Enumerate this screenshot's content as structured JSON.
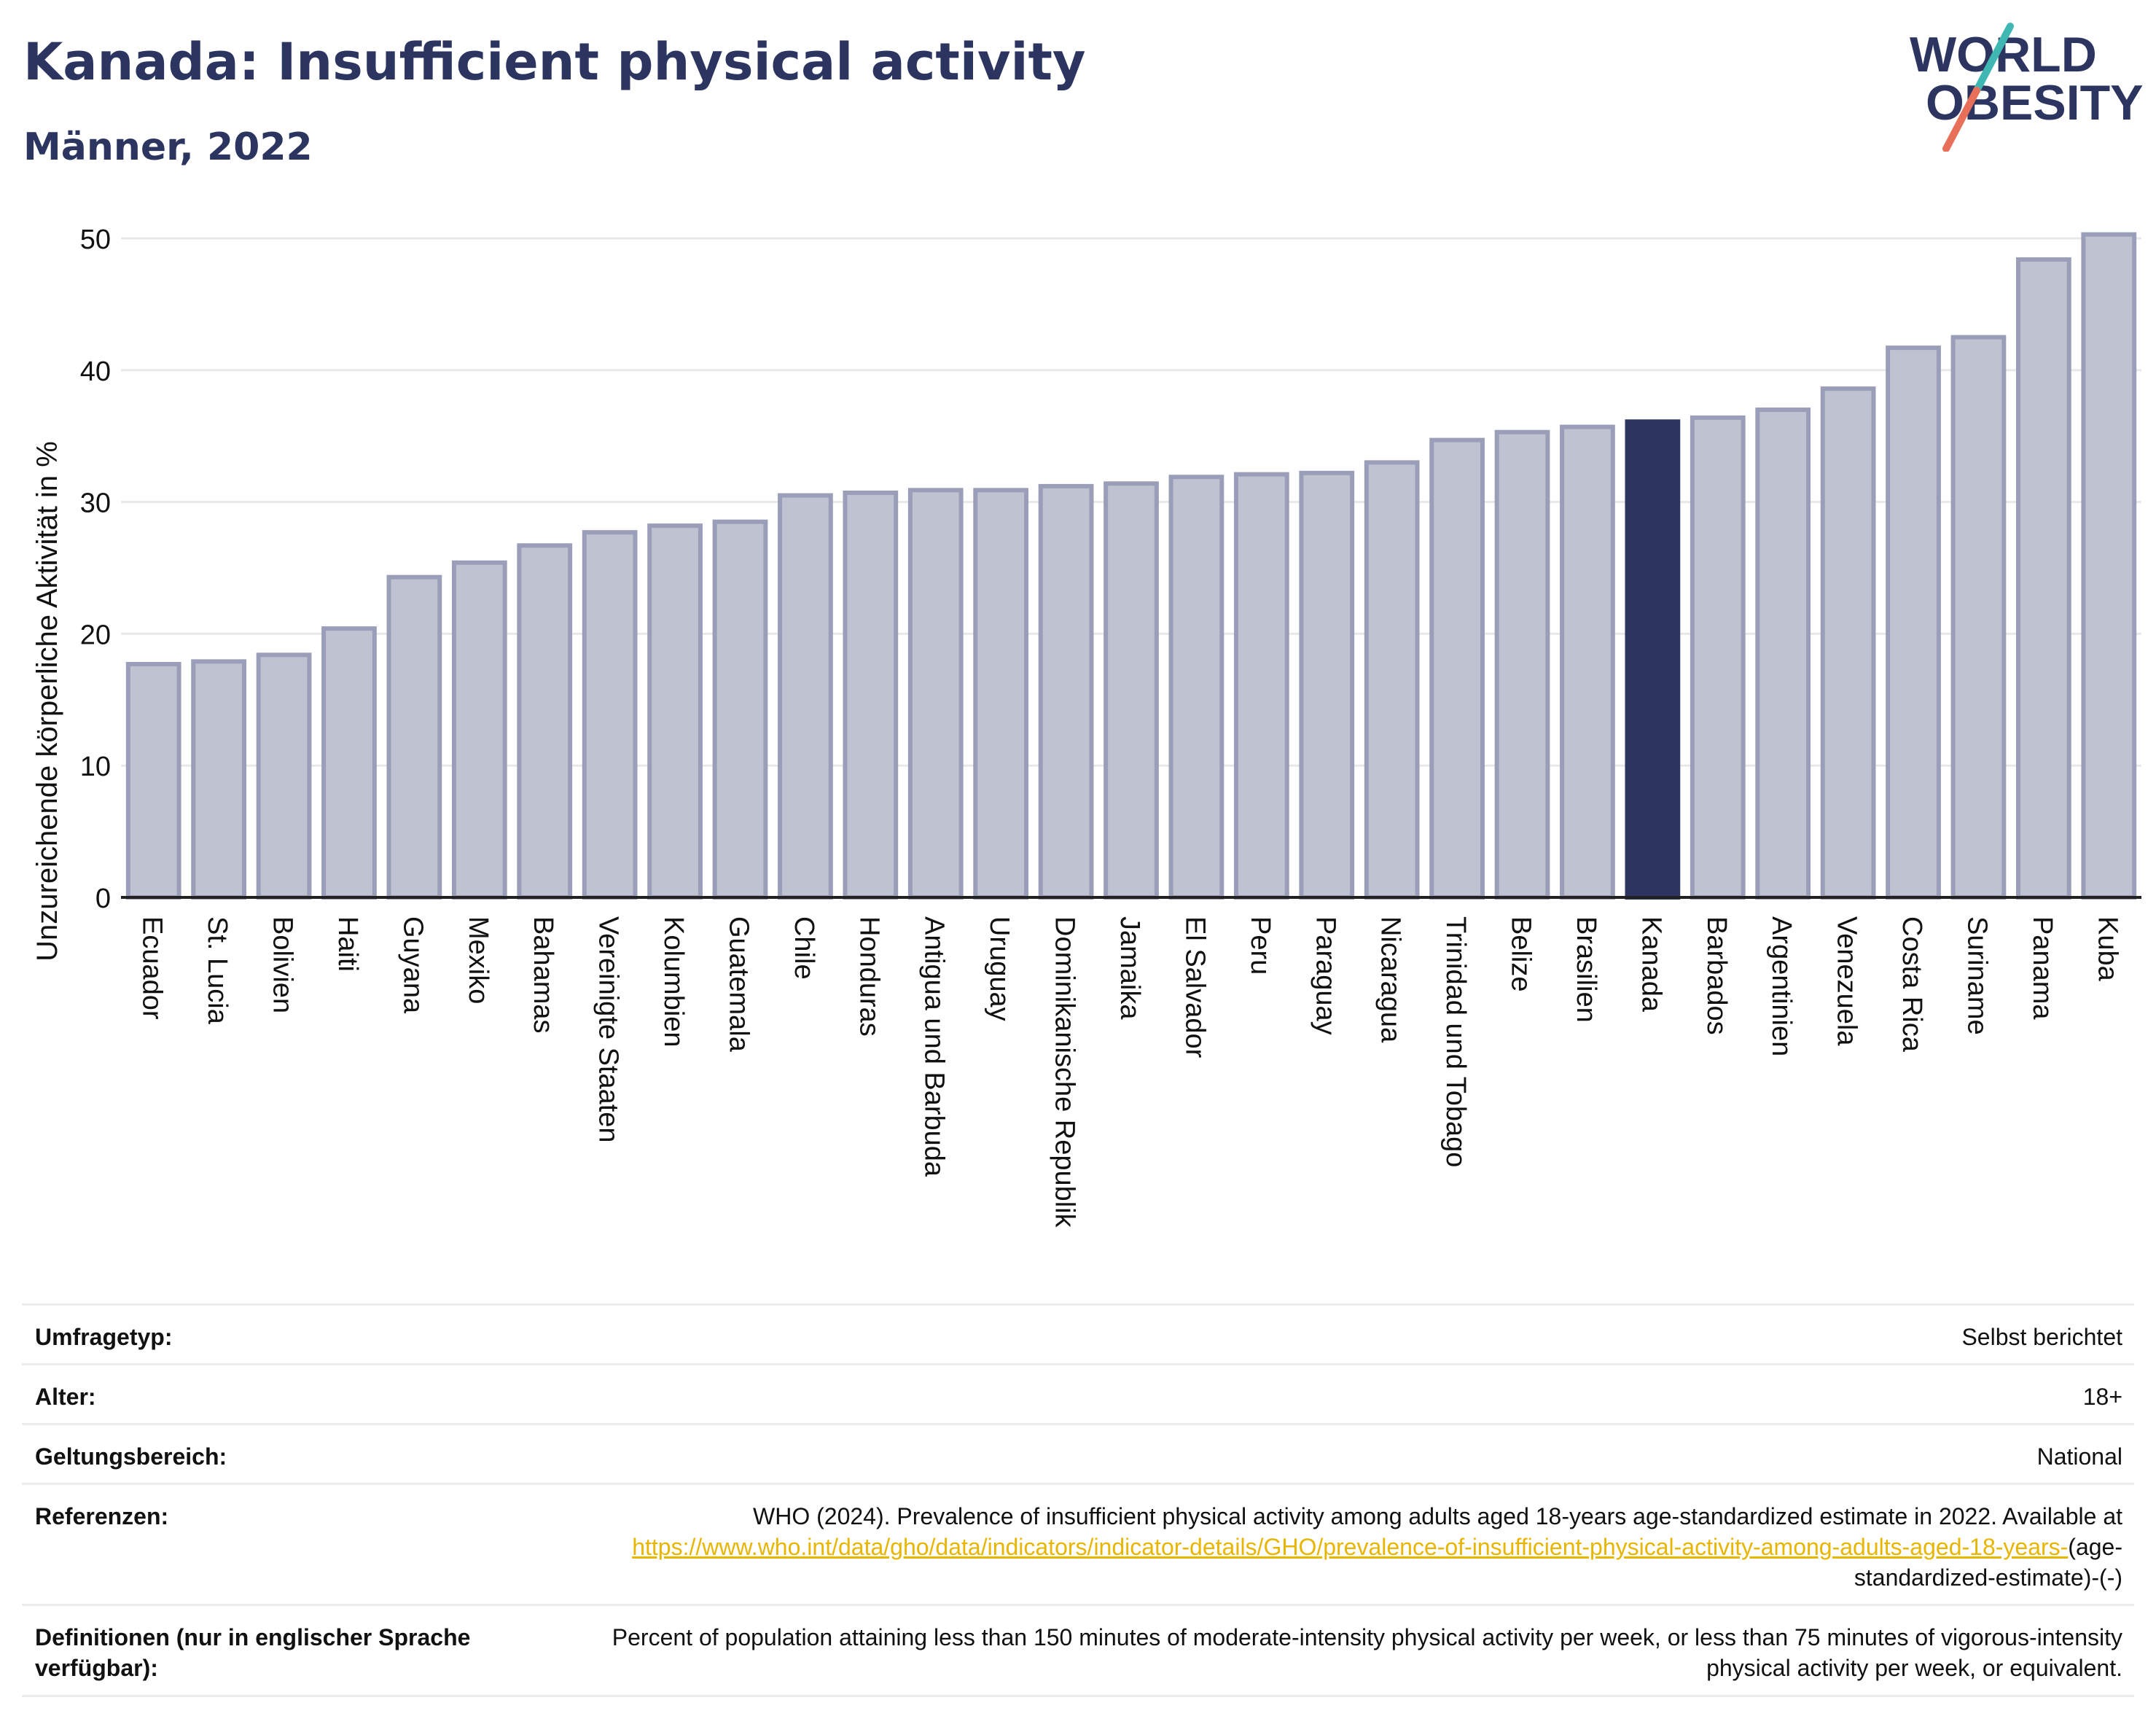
{
  "header": {
    "title": "Kanada: Insufficient physical activity",
    "subtitle": "Männer, 2022"
  },
  "logo": {
    "line1": "WORLD",
    "line2": "OBESITY",
    "colors": {
      "text": "#2b3560",
      "slash_teal": "#3fb8b4",
      "slash_coral": "#e8705a"
    }
  },
  "colors": {
    "bar_fill": "#bfc2d0",
    "bar_stroke": "#9a9eb8",
    "highlight_fill": "#2b3560",
    "grid": "#e8e8e8",
    "axis": "#222222"
  },
  "chart_data": {
    "type": "bar",
    "title": "",
    "xlabel": "",
    "ylabel": "Unzureichende körperliche Aktivität in %",
    "ylim": [
      0,
      52
    ],
    "yticks": [
      0,
      10,
      20,
      30,
      40,
      50
    ],
    "grid": true,
    "highlight": "Kanada",
    "categories": [
      "Ecuador",
      "St. Lucia",
      "Bolivien",
      "Haiti",
      "Guyana",
      "Mexiko",
      "Bahamas",
      "Vereinigte Staaten",
      "Kolumbien",
      "Guatemala",
      "Chile",
      "Honduras",
      "Antigua und Barbuda",
      "Uruguay",
      "Dominikanische Republik",
      "Jamaika",
      "El Salvador",
      "Peru",
      "Paraguay",
      "Nicaragua",
      "Trinidad und Tobago",
      "Belize",
      "Brasilien",
      "Kanada",
      "Barbados",
      "Argentinien",
      "Venezuela",
      "Costa Rica",
      "Suriname",
      "Panama",
      "Kuba"
    ],
    "values": [
      17.7,
      17.9,
      18.4,
      20.4,
      24.3,
      25.4,
      26.7,
      27.7,
      28.2,
      28.5,
      30.5,
      30.7,
      30.9,
      30.9,
      31.2,
      31.4,
      31.9,
      32.1,
      32.2,
      33.0,
      34.7,
      35.3,
      35.7,
      36.1,
      36.4,
      37.0,
      38.6,
      41.7,
      42.5,
      48.4,
      50.3
    ]
  },
  "info": {
    "survey_label": "Umfragetyp:",
    "survey_value": "Selbst berichtet",
    "age_label": "Alter:",
    "age_value": "18+",
    "scope_label": "Geltungsbereich:",
    "scope_value": "National",
    "ref_label": "Referenzen:",
    "ref_text": "WHO (2024). Prevalence of insufficient physical activity among adults aged 18-years age-standardized estimate in 2022. Available at",
    "ref_link": "https://www.who.int/data/gho/data/indicators/indicator-details/GHO/prevalence-of-insufficient-physical-activity-among-adults-aged-18-years-",
    "ref_suffix": "(age-standardized-estimate)-(-)",
    "def_label": "Definitionen (nur in englischer Sprache verfügbar):",
    "def_value": "Percent of population attaining less than 150 minutes of moderate-intensity physical activity per week, or less than 75 minutes of vigorous-intensity physical activity per week, or equivalent."
  }
}
